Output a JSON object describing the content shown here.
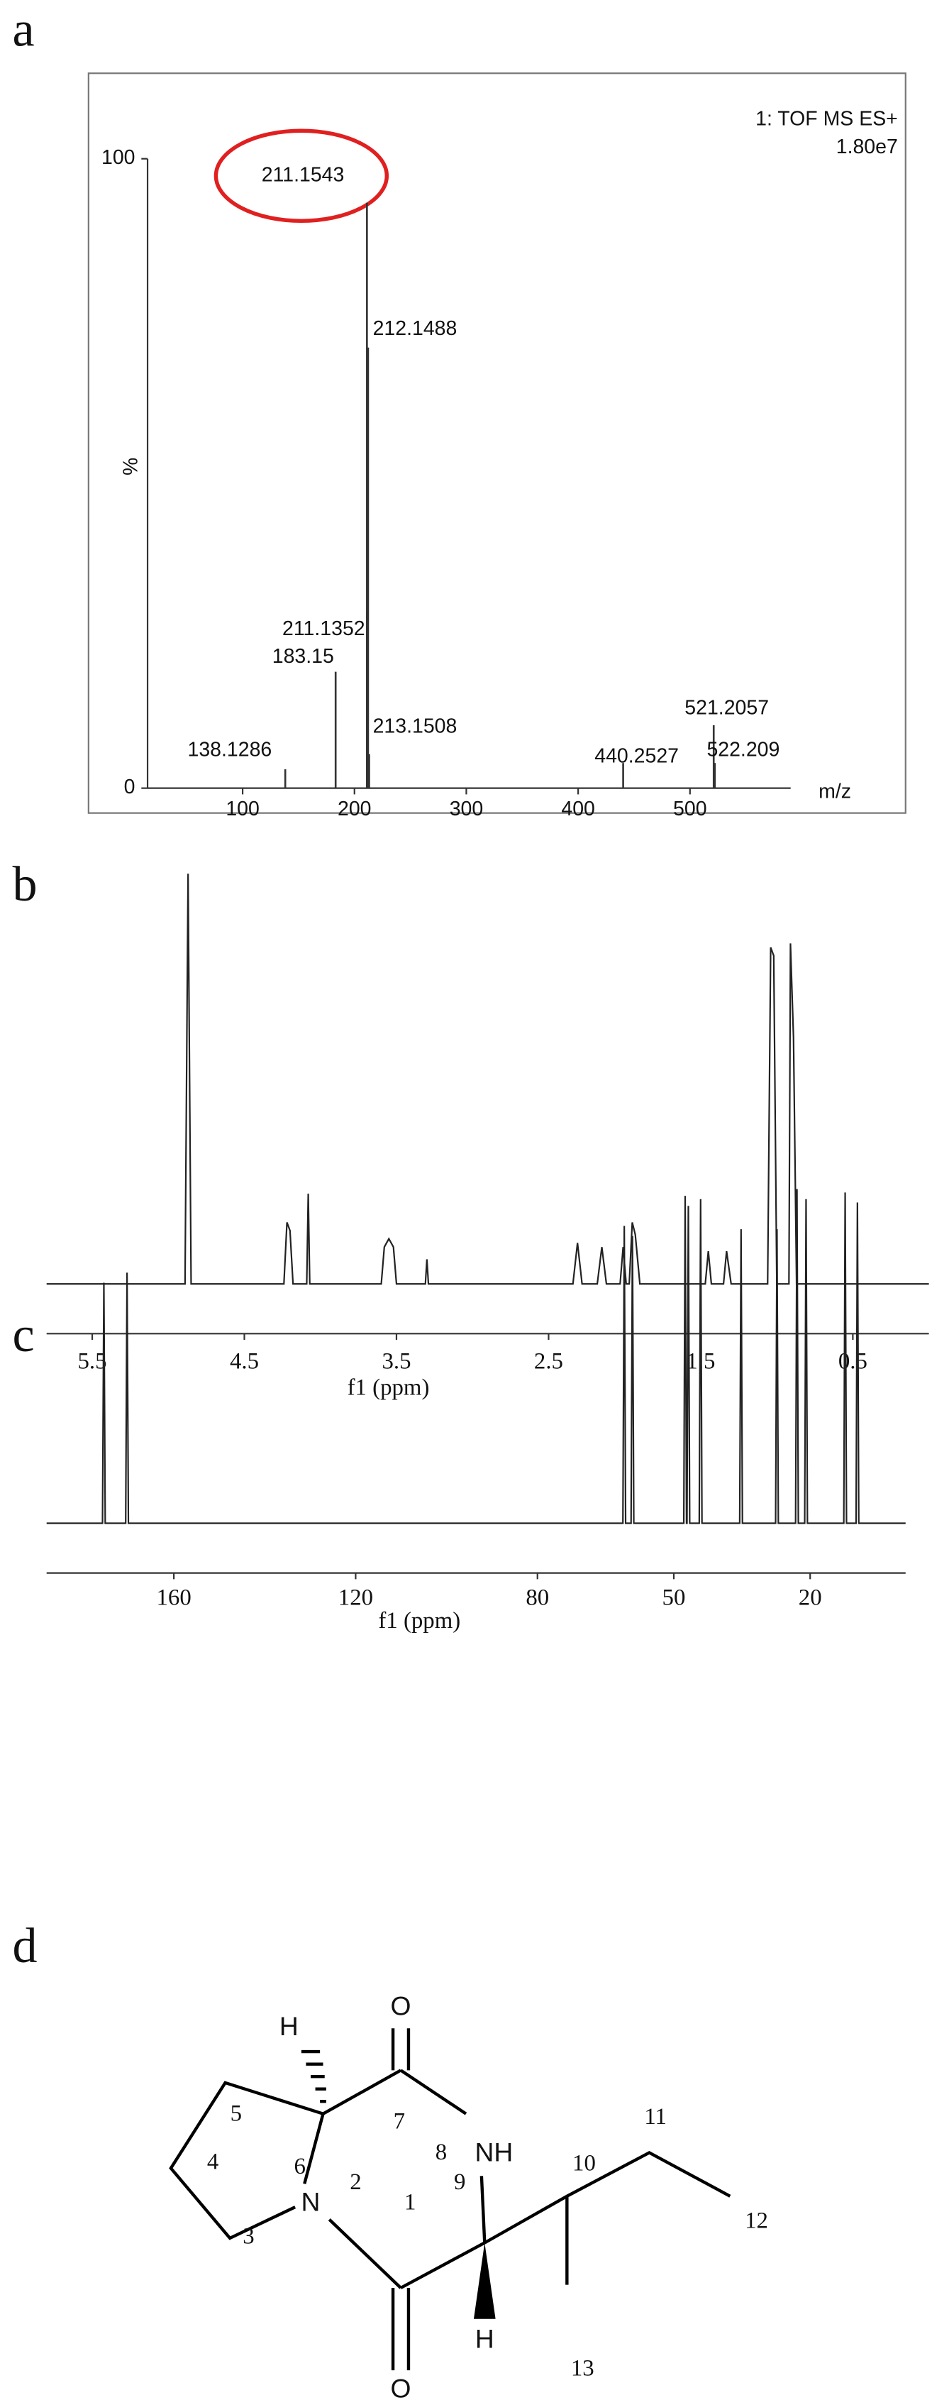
{
  "chart_data": [
    {
      "type": "stick",
      "label": "a",
      "annotation": "1: TOF MS ES+",
      "scale_label": "1.80e7",
      "xlabel": "m/z",
      "ylabel": "%",
      "x": [
        211.1543,
        212.1488,
        211.1352,
        183.15,
        213.1508,
        138.1286,
        440.2527,
        521.2057,
        522.209
      ],
      "values": [
        93,
        70,
        28,
        18.5,
        5.4,
        3,
        4,
        10,
        4
      ],
      "xlim": [
        15,
        590
      ],
      "ylim": [
        0,
        100
      ],
      "xticks": [
        100,
        200,
        300,
        400,
        500
      ],
      "yticks": [
        0,
        100
      ],
      "color": "#333333",
      "highlight_color": "#e02020"
    },
    {
      "type": "line",
      "label": "b",
      "xlabel": "f1 (ppm)",
      "x": [
        5.8,
        4.89,
        4.87,
        4.85,
        4.24,
        4.22,
        4.2,
        4.18,
        4.09,
        4.08,
        4.07,
        3.6,
        3.58,
        3.55,
        3.52,
        3.5,
        3.31,
        3.3,
        3.29,
        2.34,
        2.31,
        2.28,
        2.18,
        2.15,
        2.12,
        2.03,
        2.01,
        1.99,
        1.97,
        1.95,
        1.93,
        1.9,
        1.47,
        1.45,
        1.43,
        1.35,
        1.33,
        1.3,
        1.06,
        1.04,
        1.02,
        1.0,
        0.92,
        0.91,
        0.89,
        0.87,
        0.0
      ],
      "values": [
        0,
        0,
        100,
        0,
        0,
        15,
        13,
        0,
        0,
        22,
        0,
        0,
        9,
        11,
        9,
        0,
        0,
        6,
        0,
        0,
        10,
        0,
        0,
        9,
        0,
        0,
        9,
        0,
        0,
        15,
        12,
        0,
        0,
        8,
        0,
        0,
        8,
        0,
        0,
        82,
        80,
        0,
        0,
        83,
        60,
        0,
        0
      ],
      "xlim": [
        5.8,
        0.0
      ],
      "ylim": [
        0,
        100
      ],
      "xticks": [
        5.5,
        4.5,
        3.5,
        2.5,
        1.5,
        0.5
      ],
      "color": "#222222"
    },
    {
      "type": "line",
      "label": "c",
      "xlabel": "f1 (ppm)",
      "x": [
        188,
        175.7,
        175.4,
        175.1,
        170.6,
        170.3,
        170.0,
        61.2,
        60.9,
        60.6,
        59.4,
        59.1,
        58.8,
        47.8,
        47.5,
        47.2,
        47.1,
        46.8,
        46.5,
        44.4,
        44.1,
        43.8,
        35.5,
        35.2,
        34.9,
        27.6,
        27.3,
        27.0,
        23.2,
        22.9,
        22.6,
        21.2,
        20.9,
        20.6,
        12.6,
        12.3,
        12.0,
        9.9,
        9.6,
        9.3,
        -1
      ],
      "values": [
        0,
        0,
        72,
        0,
        0,
        75,
        0,
        0,
        89,
        0,
        0,
        86,
        0,
        0,
        98,
        0,
        0,
        95,
        0,
        0,
        97,
        0,
        0,
        88,
        0,
        0,
        88,
        0,
        0,
        100,
        0,
        0,
        97,
        0,
        0,
        99,
        0,
        0,
        96,
        0,
        0
      ],
      "xlim": [
        188,
        -1
      ],
      "ylim": [
        0,
        100
      ],
      "xticks": [
        160,
        120,
        80,
        50,
        20
      ],
      "color": "#222222"
    }
  ],
  "structure": {
    "label": "d",
    "atoms": [
      "O",
      "O",
      "H",
      "H",
      "NH",
      "N"
    ],
    "locants": [
      "1",
      "2",
      "3",
      "4",
      "5",
      "6",
      "7",
      "8",
      "9",
      "10",
      "11",
      "12",
      "13"
    ]
  }
}
